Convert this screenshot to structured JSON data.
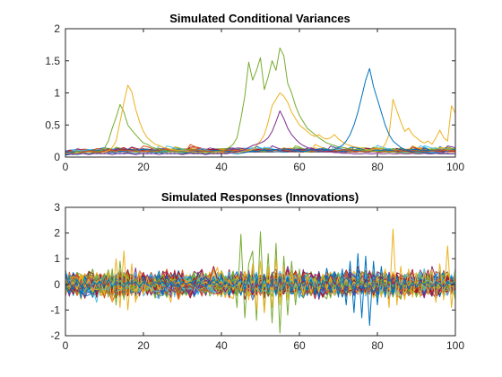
{
  "chart_data": [
    {
      "type": "line",
      "title": "Simulated Conditional Variances",
      "xlabel": "",
      "ylabel": "",
      "xlim": [
        0,
        100
      ],
      "ylim": [
        0,
        2
      ],
      "xticks": [
        0,
        20,
        40,
        60,
        80,
        100
      ],
      "yticks": [
        0,
        0.5,
        1,
        1.5,
        2
      ],
      "ytick_labels": [
        "0",
        "0.5",
        "1",
        "1.5",
        "2"
      ],
      "grid": false,
      "n_series_approx": 100,
      "x": [
        0,
        1,
        2,
        3,
        4,
        5,
        6,
        7,
        8,
        9,
        10,
        11,
        12,
        13,
        14,
        15,
        16,
        17,
        18,
        19,
        20,
        21,
        22,
        23,
        24,
        25,
        26,
        27,
        28,
        29,
        30,
        31,
        32,
        33,
        34,
        35,
        36,
        37,
        38,
        39,
        40,
        41,
        42,
        43,
        44,
        45,
        46,
        47,
        48,
        49,
        50,
        51,
        52,
        53,
        54,
        55,
        56,
        57,
        58,
        59,
        60,
        61,
        62,
        63,
        64,
        65,
        66,
        67,
        68,
        69,
        70,
        71,
        72,
        73,
        74,
        75,
        76,
        77,
        78,
        79,
        80,
        81,
        82,
        83,
        84,
        85,
        86,
        87,
        88,
        89,
        90,
        91,
        92,
        93,
        94,
        95,
        96,
        97,
        98,
        99,
        100
      ],
      "highlight_series": [
        {
          "color": "#77AC30",
          "values": [
            0.04,
            0.05,
            0.06,
            0.08,
            0.07,
            0.06,
            0.05,
            0.06,
            0.08,
            0.1,
            0.14,
            0.25,
            0.45,
            0.62,
            0.82,
            0.7,
            0.5,
            0.42,
            0.35,
            0.28,
            0.22,
            0.2,
            0.16,
            0.14,
            0.12,
            0.11,
            0.1,
            0.09,
            0.08,
            0.08,
            0.07,
            0.07,
            0.06,
            0.07,
            0.06,
            0.07,
            0.08,
            0.07,
            0.08,
            0.09,
            0.1,
            0.12,
            0.15,
            0.2,
            0.3,
            0.6,
            0.95,
            1.48,
            1.2,
            1.35,
            1.55,
            1.05,
            1.25,
            1.5,
            1.35,
            1.7,
            1.58,
            1.15,
            1.0,
            0.8,
            0.65,
            0.55,
            0.45,
            0.4,
            0.35,
            0.3,
            0.26,
            0.22,
            0.2,
            0.18,
            0.16,
            0.15,
            0.14,
            0.13,
            0.12,
            0.12,
            0.11,
            0.1,
            0.1,
            0.09,
            0.09,
            0.09,
            0.08,
            0.08,
            0.08,
            0.07,
            0.07,
            0.07,
            0.07,
            0.06,
            0.07,
            0.06,
            0.07,
            0.06,
            0.06,
            0.06,
            0.05,
            0.05,
            0.05,
            0.05,
            0.05
          ]
        },
        {
          "color": "#EDB120",
          "values": [
            0.05,
            0.06,
            0.05,
            0.07,
            0.06,
            0.07,
            0.08,
            0.07,
            0.06,
            0.07,
            0.08,
            0.1,
            0.15,
            0.25,
            0.55,
            0.85,
            1.12,
            1.02,
            0.75,
            0.55,
            0.4,
            0.3,
            0.25,
            0.2,
            0.18,
            0.15,
            0.14,
            0.12,
            0.11,
            0.1,
            0.1,
            0.09,
            0.08,
            0.08,
            0.07,
            0.07,
            0.07,
            0.06,
            0.07,
            0.06,
            0.07,
            0.06,
            0.07,
            0.08,
            0.07,
            0.08,
            0.09,
            0.1,
            0.12,
            0.18,
            0.25,
            0.35,
            0.55,
            0.8,
            0.9,
            1.0,
            0.95,
            0.85,
            0.7,
            0.6,
            0.5,
            0.45,
            0.4,
            0.35,
            0.32,
            0.35,
            0.3,
            0.28,
            0.3,
            0.35,
            0.28,
            0.24,
            0.2,
            0.18,
            0.16,
            0.15,
            0.14,
            0.12,
            0.11,
            0.12,
            0.14,
            0.12,
            0.2,
            0.35,
            0.9,
            0.72,
            0.55,
            0.4,
            0.45,
            0.35,
            0.3,
            0.25,
            0.22,
            0.25,
            0.2,
            0.3,
            0.42,
            0.3,
            0.25,
            0.8,
            0.68
          ]
        },
        {
          "color": "#0072BD",
          "values": [
            0.03,
            0.04,
            0.05,
            0.04,
            0.05,
            0.06,
            0.05,
            0.06,
            0.05,
            0.06,
            0.05,
            0.06,
            0.07,
            0.06,
            0.05,
            0.06,
            0.07,
            0.06,
            0.05,
            0.06,
            0.05,
            0.06,
            0.05,
            0.06,
            0.07,
            0.06,
            0.05,
            0.06,
            0.05,
            0.06,
            0.05,
            0.06,
            0.07,
            0.06,
            0.05,
            0.06,
            0.05,
            0.06,
            0.05,
            0.06,
            0.05,
            0.06,
            0.07,
            0.06,
            0.05,
            0.06,
            0.07,
            0.08,
            0.1,
            0.09,
            0.1,
            0.12,
            0.1,
            0.11,
            0.12,
            0.1,
            0.13,
            0.12,
            0.11,
            0.1,
            0.1,
            0.09,
            0.1,
            0.12,
            0.1,
            0.09,
            0.1,
            0.11,
            0.1,
            0.12,
            0.15,
            0.18,
            0.25,
            0.35,
            0.5,
            0.7,
            0.95,
            1.2,
            1.38,
            1.1,
            0.9,
            0.7,
            0.5,
            0.35,
            0.25,
            0.2,
            0.15,
            0.12,
            0.1,
            0.09,
            0.08,
            0.08,
            0.07,
            0.07,
            0.06,
            0.07,
            0.06,
            0.06,
            0.05,
            0.05,
            0.05
          ]
        },
        {
          "color": "#7E2F8E",
          "values": [
            0.04,
            0.05,
            0.04,
            0.05,
            0.06,
            0.05,
            0.04,
            0.05,
            0.06,
            0.05,
            0.06,
            0.05,
            0.04,
            0.05,
            0.06,
            0.05,
            0.06,
            0.05,
            0.04,
            0.05,
            0.06,
            0.05,
            0.06,
            0.05,
            0.04,
            0.05,
            0.06,
            0.05,
            0.06,
            0.05,
            0.04,
            0.05,
            0.06,
            0.05,
            0.06,
            0.05,
            0.04,
            0.05,
            0.06,
            0.05,
            0.06,
            0.05,
            0.06,
            0.07,
            0.08,
            0.1,
            0.12,
            0.15,
            0.18,
            0.2,
            0.22,
            0.25,
            0.3,
            0.4,
            0.55,
            0.72,
            0.6,
            0.45,
            0.35,
            0.28,
            0.22,
            0.18,
            0.15,
            0.13,
            0.11,
            0.1,
            0.09,
            0.08,
            0.08,
            0.07,
            0.07,
            0.06,
            0.06,
            0.06,
            0.05,
            0.05,
            0.05,
            0.06,
            0.05,
            0.05,
            0.06,
            0.05,
            0.05,
            0.06,
            0.05,
            0.05,
            0.06,
            0.05,
            0.05,
            0.06,
            0.05,
            0.05,
            0.06,
            0.05,
            0.05,
            0.06,
            0.05,
            0.05,
            0.06,
            0.05,
            0.05
          ]
        }
      ]
    },
    {
      "type": "line",
      "title": "Simulated Responses (Innovations)",
      "xlabel": "",
      "ylabel": "",
      "xlim": [
        0,
        100
      ],
      "ylim": [
        -2,
        3
      ],
      "xticks": [
        0,
        20,
        40,
        60,
        80,
        100
      ],
      "yticks": [
        -2,
        -1,
        0,
        1,
        2,
        3
      ],
      "ytick_labels": [
        "-2",
        "-1",
        "0",
        "1",
        "2",
        "3"
      ],
      "grid": false,
      "n_series_approx": 100,
      "highlight_series": [
        {
          "color": "#77AC30",
          "values": [
            0.1,
            -0.2,
            0.2,
            0.1,
            -0.1,
            0.15,
            -0.2,
            0.1,
            0.2,
            -0.3,
            0.4,
            -0.5,
            0.6,
            -0.8,
            0.9,
            -0.6,
            0.4,
            -0.3,
            0.2,
            -0.1,
            0.1,
            0.0,
            0.1,
            -0.1,
            0.2,
            0.0,
            -0.1,
            0.1,
            0.0,
            0.1,
            -0.1,
            0.1,
            0.0,
            -0.1,
            0.1,
            0.0,
            0.1,
            -0.1,
            0.1,
            0.2,
            -0.2,
            0.3,
            -0.3,
            0.5,
            -0.9,
            1.95,
            -1.3,
            0.8,
            1.3,
            -1.4,
            2.05,
            -1.1,
            1.2,
            -1.5,
            1.6,
            -1.9,
            1.1,
            -1.2,
            0.9,
            -0.8,
            0.6,
            -0.5,
            0.4,
            -0.4,
            0.3,
            -0.2,
            0.3,
            -0.2,
            0.2,
            -0.1,
            0.1,
            0.0,
            0.1,
            -0.1,
            0.1,
            0.0,
            0.1,
            -0.1,
            0.0,
            0.1,
            -0.1,
            0.1,
            0.0,
            0.1,
            -0.1,
            0.1,
            0.0,
            -0.1,
            0.1,
            0.0,
            0.1,
            -0.1,
            0.1,
            0.0,
            -0.1,
            0.1,
            0.0,
            0.1,
            -0.1,
            0.0,
            0.1
          ]
        },
        {
          "color": "#EDB120",
          "values": [
            0.2,
            -0.1,
            0.1,
            -0.2,
            0.3,
            -0.1,
            0.2,
            -0.3,
            0.1,
            0.2,
            -0.4,
            0.5,
            -0.7,
            1.0,
            -0.9,
            1.3,
            -1.0,
            0.8,
            -0.7,
            0.5,
            -0.4,
            0.3,
            -0.3,
            0.2,
            -0.2,
            0.1,
            -0.1,
            0.1,
            0.0,
            0.1,
            -0.1,
            0.1,
            0.0,
            -0.1,
            0.1,
            0.0,
            0.1,
            -0.1,
            0.1,
            0.0,
            0.1,
            -0.1,
            0.2,
            -0.2,
            0.3,
            -0.3,
            0.5,
            -0.6,
            0.8,
            -1.0,
            0.9,
            -1.1,
            0.7,
            -0.9,
            1.0,
            -0.8,
            0.7,
            -0.6,
            0.5,
            -0.5,
            0.4,
            -0.4,
            0.3,
            -0.3,
            0.2,
            -0.3,
            0.4,
            -0.2,
            0.3,
            -0.4,
            0.3,
            -0.2,
            0.2,
            -0.2,
            0.1,
            -0.1,
            0.2,
            -0.1,
            0.1,
            -0.2,
            0.3,
            -0.5,
            0.6,
            -0.9,
            2.15,
            -0.8,
            0.7,
            -0.6,
            0.6,
            -0.5,
            0.4,
            -0.5,
            0.5,
            -0.4,
            0.6,
            -0.7,
            0.8,
            -0.6,
            1.5,
            -0.9,
            0.6
          ]
        },
        {
          "color": "#0072BD",
          "values": [
            -0.1,
            0.1,
            -0.2,
            0.2,
            -0.1,
            0.1,
            -0.2,
            0.1,
            0.0,
            0.1,
            -0.1,
            0.2,
            -0.1,
            0.1,
            0.0,
            -0.1,
            0.1,
            0.0,
            0.1,
            -0.1,
            0.1,
            0.0,
            -0.1,
            0.1,
            0.0,
            0.1,
            -0.1,
            0.1,
            0.0,
            -0.1,
            0.1,
            0.0,
            0.1,
            -0.1,
            0.1,
            0.0,
            -0.1,
            0.1,
            0.0,
            0.1,
            -0.1,
            0.1,
            0.0,
            -0.1,
            0.1,
            0.2,
            -0.2,
            0.3,
            -0.3,
            0.2,
            -0.3,
            0.4,
            -0.3,
            0.2,
            -0.4,
            0.3,
            -0.2,
            0.3,
            -0.3,
            0.2,
            -0.2,
            0.3,
            -0.2,
            0.2,
            -0.3,
            0.2,
            -0.2,
            0.3,
            -0.3,
            0.4,
            -0.5,
            0.6,
            -0.8,
            0.9,
            -1.1,
            1.2,
            -1.3,
            1.1,
            -1.6,
            0.9,
            -0.8,
            0.7,
            -0.5,
            0.4,
            -0.3,
            0.3,
            -0.2,
            0.2,
            -0.2,
            0.1,
            -0.1,
            0.1,
            0.0,
            0.1,
            -0.1,
            0.1,
            0.0,
            -0.1,
            0.1,
            0.0,
            0.1
          ]
        }
      ]
    }
  ],
  "colors": {
    "order": [
      "#0072BD",
      "#D95319",
      "#EDB120",
      "#7E2F8E",
      "#77AC30",
      "#4DBEEE",
      "#A2142F"
    ],
    "axis": "#262626"
  }
}
